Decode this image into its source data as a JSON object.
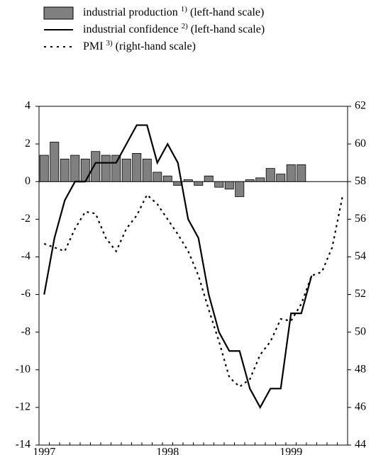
{
  "chart_data": {
    "type": "bar-line",
    "categories": [
      "1997",
      null,
      null,
      null,
      null,
      null,
      null,
      null,
      null,
      null,
      null,
      null,
      "1998",
      null,
      null,
      null,
      null,
      null,
      null,
      null,
      null,
      null,
      null,
      null,
      "1999",
      null,
      null,
      null,
      null,
      null
    ],
    "series": [
      {
        "name": "industrial production",
        "note": "1)",
        "scale": "(left-hand scale)",
        "type": "bar",
        "color": "#808080",
        "values": [
          1.4,
          2.1,
          1.2,
          1.4,
          1.2,
          1.6,
          1.4,
          1.4,
          1.2,
          1.5,
          1.2,
          0.5,
          0.3,
          -0.2,
          0.1,
          -0.2,
          0.3,
          -0.3,
          -0.4,
          -0.8,
          0.1,
          0.2,
          0.7,
          0.4,
          0.9,
          0.9,
          null,
          null,
          null,
          null
        ]
      },
      {
        "name": "industrial confidence",
        "note": "2)",
        "scale": "(left-hand scale)",
        "type": "line",
        "color": "#000000",
        "values": [
          -6,
          -3,
          -1,
          0,
          0,
          1,
          1,
          1,
          2,
          3,
          3,
          1,
          2,
          1,
          -2,
          -3,
          -6,
          -8,
          -9,
          -9,
          -11,
          -12,
          -11,
          -11,
          -7,
          -7,
          -5,
          null,
          null,
          null
        ]
      },
      {
        "name": "PMI",
        "note": "3)",
        "scale": "(right-hand scale)",
        "type": "dotted",
        "color": "#000000",
        "axis": "y2",
        "values": [
          54.7,
          54.5,
          54.3,
          55.5,
          56.4,
          56.3,
          55.0,
          54.3,
          55.5,
          56.2,
          57.3,
          56.8,
          56.0,
          55.2,
          54.3,
          53.0,
          51.2,
          49.5,
          47.6,
          47.1,
          47.5,
          48.8,
          49.5,
          50.7,
          50.6,
          51.5,
          53.0,
          53.2,
          54.5,
          57.2
        ]
      }
    ],
    "ylim": [
      -14,
      4
    ],
    "yticks": [
      -14,
      -12,
      -10,
      -8,
      -6,
      -4,
      -2,
      0,
      2,
      4
    ],
    "y2lim": [
      44,
      62
    ],
    "y2ticks": [
      44,
      46,
      48,
      50,
      52,
      54,
      56,
      58,
      60,
      62
    ]
  }
}
